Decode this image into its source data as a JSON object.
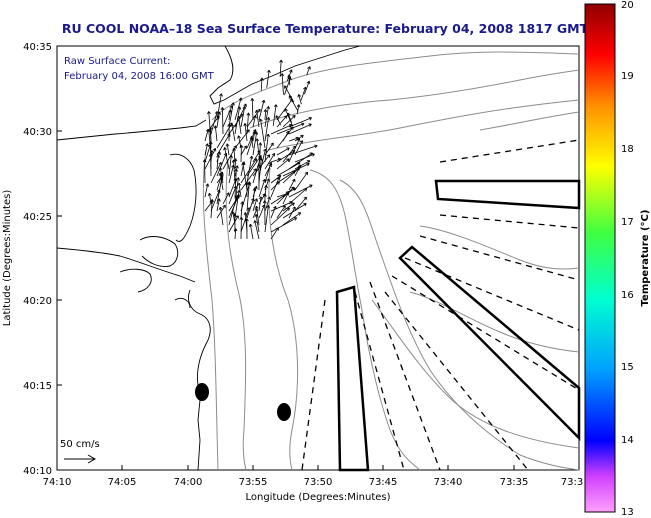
{
  "header": {
    "title": "RU COOL  NOAA–18  Sea Surface Temperature:  February 04, 2008 1817 GMT"
  },
  "overlay": {
    "line1": "Raw Surface Current:",
    "line2": "February 04, 2008 16:00 GMT",
    "scale_label": "50 cm/s"
  },
  "axes": {
    "xlabel": "Longitude (Degrees:Minutes)",
    "ylabel": "Latitude (Degrees:Minutes)",
    "x_ticks": [
      "74:10",
      "74:05",
      "74:00",
      "73:55",
      "73:50",
      "73:45",
      "73:40",
      "73:35",
      "73:3"
    ],
    "y_ticks": [
      "40:35",
      "40:30",
      "40:25",
      "40:20",
      "40:15",
      "40:10"
    ]
  },
  "colorbar": {
    "label": "Temperature (°C)",
    "min": 13,
    "max": 20,
    "ticks": [
      "20",
      "19",
      "18",
      "17",
      "16",
      "15",
      "14",
      "13"
    ]
  },
  "colors": {
    "title": "#1a1a8c",
    "land_line": "#000000",
    "contour": "#8c8c8c"
  }
}
